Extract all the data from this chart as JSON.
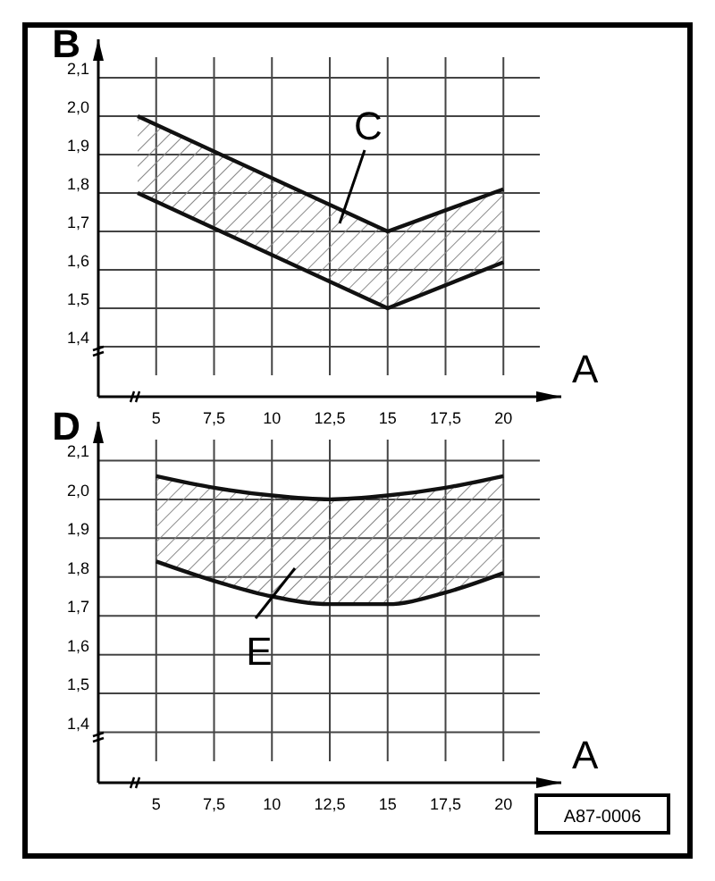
{
  "chart_data": [
    {
      "type": "line",
      "ylabel": "B",
      "xlabel": "A",
      "x": [
        4.2,
        15,
        20
      ],
      "xlim": [
        2.5,
        22.5
      ],
      "ylim": [
        1.27,
        2.2
      ],
      "grid": true,
      "marker": "none",
      "line_style": "solid",
      "xticks": [
        5,
        {
          "value": 7.5,
          "label": "7,5"
        },
        10,
        {
          "value": 12.5,
          "label": "12,5"
        },
        15,
        {
          "value": 17.5,
          "label": "17,5"
        },
        20
      ],
      "yticks": [
        {
          "value": 1.4,
          "label": "1,4"
        },
        {
          "value": 1.5,
          "label": "1,5"
        },
        {
          "value": 1.6,
          "label": "1,6"
        },
        {
          "value": 1.7,
          "label": "1,7"
        },
        {
          "value": 1.8,
          "label": "1,8"
        },
        {
          "value": 1.9,
          "label": "1,9"
        },
        {
          "value": 2.0,
          "label": "2,0"
        },
        {
          "value": 2.1,
          "label": "2,1"
        }
      ],
      "series": [
        {
          "color": "#111111",
          "values": [
            2.0,
            1.7,
            1.81
          ],
          "upper": [
            2.0,
            1.7,
            1.81
          ],
          "lower": [
            1.8,
            1.5,
            1.62
          ]
        },
        {
          "color": "#111111",
          "values": [
            1.8,
            1.5,
            1.62
          ]
        }
      ],
      "annotations": [
        "C"
      ]
    },
    {
      "type": "line",
      "ylabel": "D",
      "xlabel": "A",
      "x": [
        5,
        7.5,
        10,
        12.5,
        15,
        17.5,
        20
      ],
      "xlim": [
        2.5,
        22.5
      ],
      "ylim": [
        1.27,
        2.2
      ],
      "grid": true,
      "marker": "none",
      "line_style": "solid",
      "xticks": [
        5,
        {
          "value": 7.5,
          "label": "7,5"
        },
        10,
        {
          "value": 12.5,
          "label": "12,5"
        },
        15,
        {
          "value": 17.5,
          "label": "17,5"
        },
        20
      ],
      "yticks": [
        {
          "value": 1.4,
          "label": "1,4"
        },
        {
          "value": 1.5,
          "label": "1,5"
        },
        {
          "value": 1.6,
          "label": "1,6"
        },
        {
          "value": 1.7,
          "label": "1,7"
        },
        {
          "value": 1.8,
          "label": "1,8"
        },
        {
          "value": 1.9,
          "label": "1,9"
        },
        {
          "value": 2.0,
          "label": "2,0"
        },
        {
          "value": 2.1,
          "label": "2,1"
        }
      ],
      "series": [
        {
          "color": "#111111",
          "values": [
            2.06,
            2.03,
            2.01,
            2.0,
            2.01,
            2.03,
            2.06
          ],
          "upper": [
            2.06,
            2.03,
            2.01,
            2.0,
            2.01,
            2.03,
            2.06
          ],
          "lower": [
            1.84,
            1.79,
            1.75,
            1.73,
            1.73,
            1.76,
            1.81
          ]
        },
        {
          "color": "#111111",
          "values": [
            1.84,
            1.79,
            1.75,
            1.73,
            1.73,
            1.76,
            1.81
          ]
        }
      ],
      "annotations": [
        "E",
        "A87-0006"
      ]
    }
  ]
}
